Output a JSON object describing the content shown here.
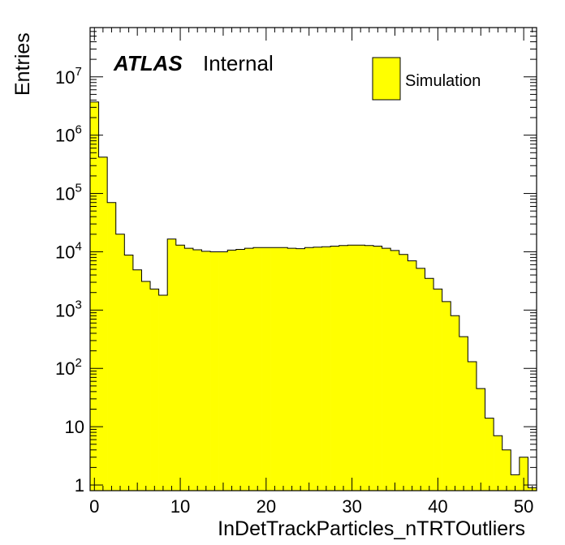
{
  "chart_data": {
    "type": "bar",
    "xlabel": "InDetTrackParticles_nTRTOutliers",
    "ylabel": "Entries",
    "xlim": [
      -0.5,
      51.5
    ],
    "ylog": true,
    "ylim": [
      0.8,
      70000000
    ],
    "bin_width": 1,
    "x_tick_labels": [
      "0",
      "10",
      "20",
      "30",
      "40",
      "50"
    ],
    "x_tick_values": [
      0,
      10,
      20,
      30,
      40,
      50
    ],
    "y_tick_labels": [
      {
        "value": 1,
        "base": "1",
        "exp": ""
      },
      {
        "value": 10,
        "base": "10",
        "exp": ""
      },
      {
        "value": 100,
        "base": "10",
        "exp": "2"
      },
      {
        "value": 1000,
        "base": "10",
        "exp": "3"
      },
      {
        "value": 10000,
        "base": "10",
        "exp": "4"
      },
      {
        "value": 100000,
        "base": "10",
        "exp": "5"
      },
      {
        "value": 1000000,
        "base": "10",
        "exp": "6"
      },
      {
        "value": 10000000,
        "base": "10",
        "exp": "7"
      }
    ],
    "series": [
      {
        "name": "Simulation",
        "color": "#ffff00",
        "x": [
          0,
          1,
          2,
          3,
          4,
          5,
          6,
          7,
          8,
          9,
          10,
          11,
          12,
          13,
          14,
          15,
          16,
          17,
          18,
          19,
          20,
          21,
          22,
          23,
          24,
          25,
          26,
          27,
          28,
          29,
          30,
          31,
          32,
          33,
          34,
          35,
          36,
          37,
          38,
          39,
          40,
          41,
          42,
          43,
          44,
          45,
          46,
          47,
          48,
          49,
          50,
          51
        ],
        "values": [
          3700000,
          420000,
          70000,
          20000,
          8800,
          4900,
          3100,
          2300,
          1800,
          16500,
          13000,
          11500,
          10800,
          10200,
          10000,
          10000,
          10700,
          11000,
          11500,
          11800,
          11800,
          11800,
          11800,
          11500,
          11300,
          11800,
          12000,
          12200,
          12500,
          12800,
          13000,
          13000,
          12800,
          12500,
          11500,
          10500,
          9000,
          7000,
          5200,
          3500,
          2300,
          1400,
          800,
          350,
          130,
          45,
          14,
          7,
          4,
          1.5,
          3,
          0.9
        ]
      }
    ],
    "annotations": {
      "atlas": "ATLAS",
      "status": "Internal"
    },
    "legend": {
      "position": "top-right",
      "entries": [
        "Simulation"
      ]
    }
  }
}
